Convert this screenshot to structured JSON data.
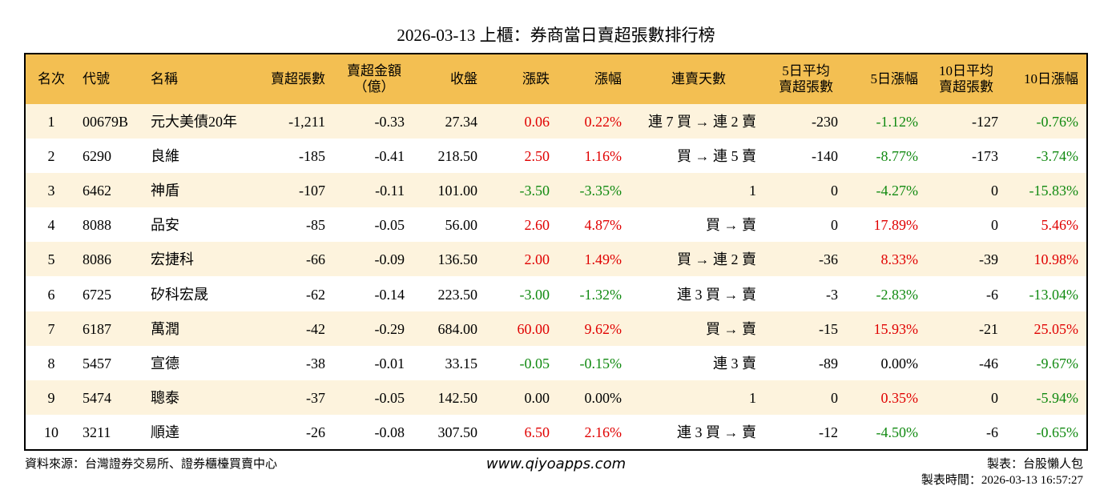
{
  "title": "2026-03-13 上櫃：券商當日賣超張數排行榜",
  "table": {
    "header": [
      [
        "名次"
      ],
      [
        "代號"
      ],
      [
        "名稱"
      ],
      [
        "賣超張數"
      ],
      [
        "賣超金額",
        "（億）"
      ],
      [
        "收盤"
      ],
      [
        "漲跌"
      ],
      [
        "漲幅"
      ],
      [
        "連賣天數"
      ],
      [
        "5日平均",
        "賣超張數"
      ],
      [
        "5日漲幅"
      ],
      [
        "10日平均",
        "賣超張數"
      ],
      [
        "10日漲幅"
      ]
    ],
    "rows": [
      [
        "1",
        "00679B",
        "元大美債20年",
        "-1,211",
        "-0.33",
        "27.34",
        "0.06",
        "0.22%",
        "連 7 買 → 連 2 賣",
        "-230",
        "-1.12%",
        "-127",
        "-0.76%"
      ],
      [
        "2",
        "6290",
        "良維",
        "-185",
        "-0.41",
        "218.50",
        "2.50",
        "1.16%",
        "買 → 連 5 賣",
        "-140",
        "-8.77%",
        "-173",
        "-3.74%"
      ],
      [
        "3",
        "6462",
        "神盾",
        "-107",
        "-0.11",
        "101.00",
        "-3.50",
        "-3.35%",
        "1",
        "0",
        "-4.27%",
        "0",
        "-15.83%"
      ],
      [
        "4",
        "8088",
        "品安",
        "-85",
        "-0.05",
        "56.00",
        "2.60",
        "4.87%",
        "買 → 賣",
        "0",
        "17.89%",
        "0",
        "5.46%"
      ],
      [
        "5",
        "8086",
        "宏捷科",
        "-66",
        "-0.09",
        "136.50",
        "2.00",
        "1.49%",
        "買 → 連 2 賣",
        "-36",
        "8.33%",
        "-39",
        "10.98%"
      ],
      [
        "6",
        "6725",
        "矽科宏晟",
        "-62",
        "-0.14",
        "223.50",
        "-3.00",
        "-1.32%",
        "連 3 買 → 賣",
        "-3",
        "-2.83%",
        "-6",
        "-13.04%"
      ],
      [
        "7",
        "6187",
        "萬潤",
        "-42",
        "-0.29",
        "684.00",
        "60.00",
        "9.62%",
        "買 → 賣",
        "-15",
        "15.93%",
        "-21",
        "25.05%"
      ],
      [
        "8",
        "5457",
        "宣德",
        "-38",
        "-0.01",
        "33.15",
        "-0.05",
        "-0.15%",
        "連 3 賣",
        "-89",
        "0.00%",
        "-46",
        "-9.67%"
      ],
      [
        "9",
        "5474",
        "聰泰",
        "-37",
        "-0.05",
        "142.50",
        "0.00",
        "0.00%",
        "1",
        "0",
        "0.35%",
        "0",
        "-5.94%"
      ],
      [
        "10",
        "3211",
        "順達",
        "-26",
        "-0.08",
        "307.50",
        "6.50",
        "2.16%",
        "連 3 買 → 賣",
        "-12",
        "-4.50%",
        "-6",
        "-0.65%"
      ]
    ]
  },
  "footer": {
    "source": "資料來源：台灣證券交易所、證券櫃檯買賣中心",
    "website": "www.qiyoapps.com",
    "maker": "製表：台股懶人包",
    "time": "製表時間：2026-03-13 16:57:27"
  }
}
